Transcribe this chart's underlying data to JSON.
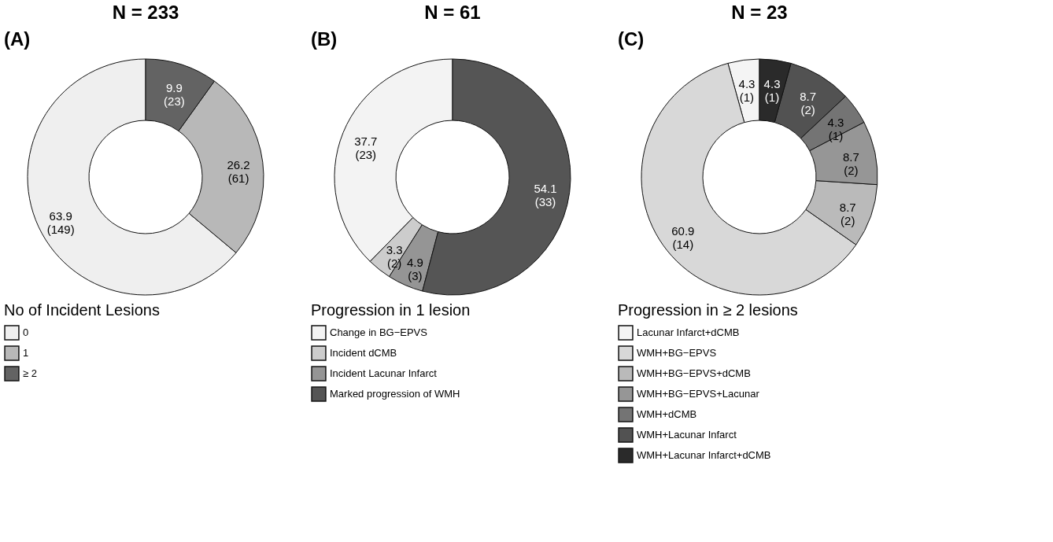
{
  "chart_data": [
    {
      "type": "donut",
      "title": "N = 233",
      "annotations": [
        "(A)"
      ],
      "legend_title": "No of Incident Lesions",
      "legend": "bottom",
      "categories": [
        "0",
        "1",
        "≥ 2"
      ],
      "values": [
        63.9,
        26.2,
        9.9
      ],
      "colors": [
        "#efefef",
        "#b8b8b8",
        "#636363"
      ],
      "value_labels": [
        "63.9 (149)",
        "26.2 (61)",
        "9.9 (23)"
      ]
    },
    {
      "type": "donut",
      "title": "N = 61",
      "annotations": [
        "(B)"
      ],
      "legend_title": "Progression in 1 lesion",
      "legend": "bottom",
      "categories": [
        "Change in BG−EPVS",
        "Incident dCMB",
        "Incident Lacunar Infarct",
        "Marked progression of WMH"
      ],
      "values": [
        37.7,
        3.3,
        4.9,
        54.1
      ],
      "colors": [
        "#f3f3f3",
        "#cccccc",
        "#959595",
        "#555555"
      ],
      "value_labels": [
        "37.7 (23)",
        "3.3 (2)",
        "4.9 (3)",
        "54.1 (33)"
      ]
    },
    {
      "type": "donut",
      "title": "N = 23",
      "annotations": [
        "(C)"
      ],
      "legend_title": "Progression in ≥ 2 lesions",
      "legend": "bottom",
      "categories": [
        "Lacunar Infarct+dCMB",
        "WMH+BG−EPVS",
        "WMH+BG−EPVS+dCMB",
        "WMH+BG−EPVS+Lacunar",
        "WMH+dCMB",
        "WMH+Lacunar Infarct",
        "WMH+Lacunar Infarct+dCMB"
      ],
      "values": [
        4.3,
        60.9,
        8.7,
        8.7,
        4.3,
        8.7,
        4.3
      ],
      "colors": [
        "#f4f4f4",
        "#d8d8d8",
        "#bababa",
        "#969696",
        "#747474",
        "#525252",
        "#2a2a2a"
      ],
      "value_labels": [
        "4.3 (1)",
        "60.9 (14)",
        "8.7 (2)",
        "8.7 (2)",
        "4.3 (1)",
        "8.7 (2)",
        "4.3 (1)"
      ]
    }
  ]
}
